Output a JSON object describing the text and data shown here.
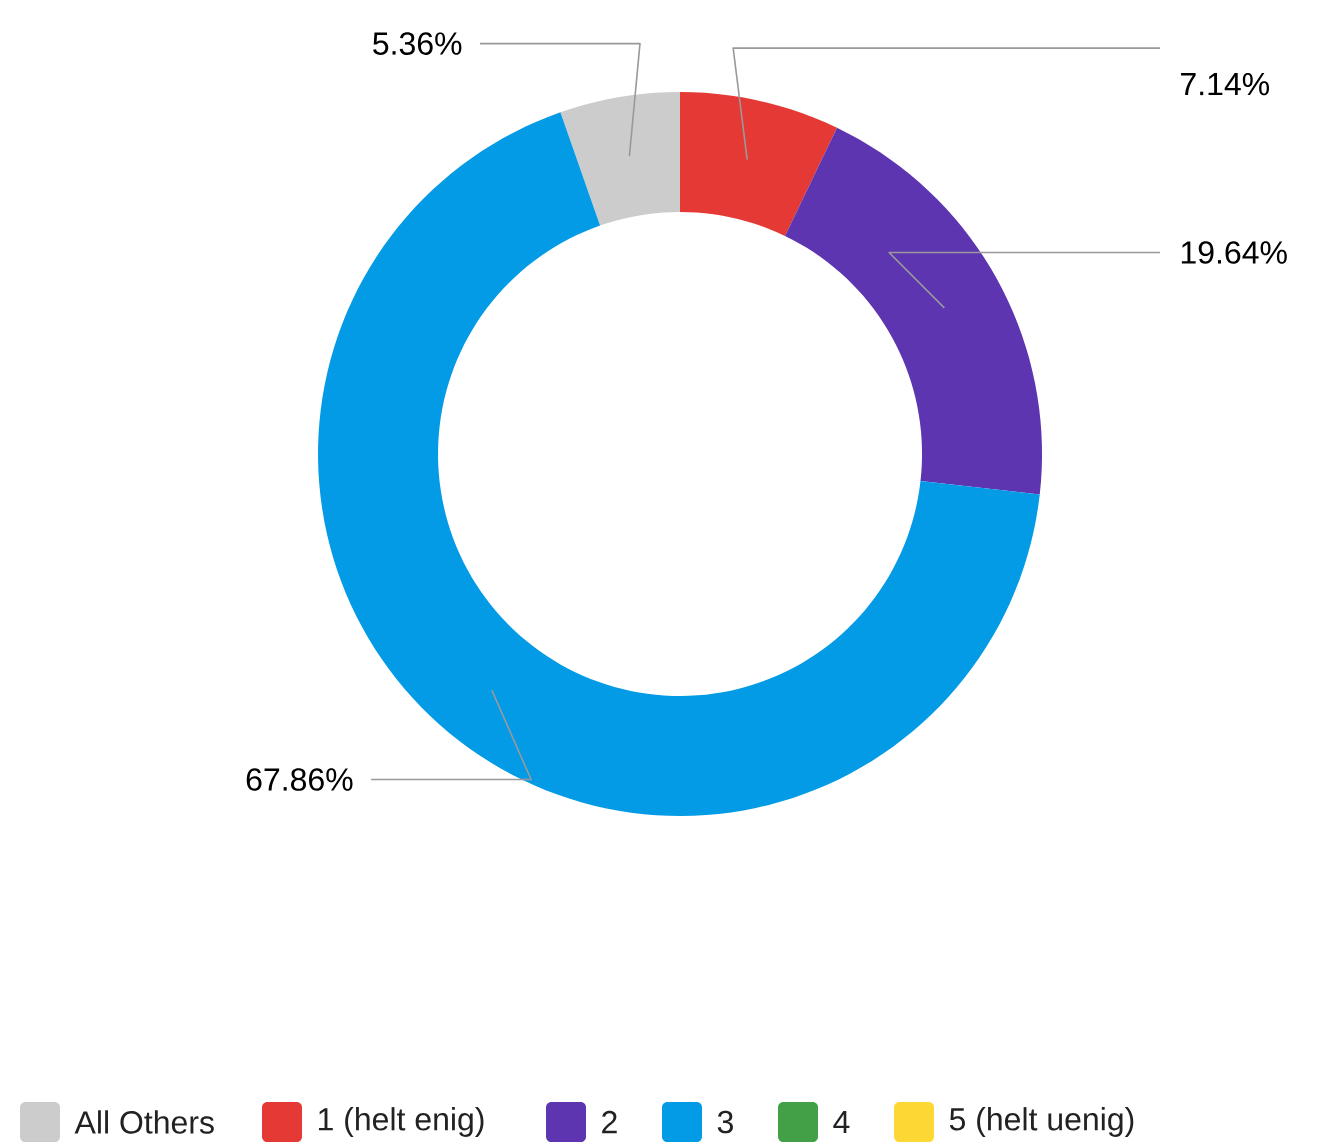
{
  "chart_data": {
    "type": "donut",
    "categories": [
      "All Others",
      "1 (helt enig)",
      "2",
      "3",
      "4",
      "5 (helt uenig)"
    ],
    "values": [
      5.36,
      7.14,
      19.64,
      67.86,
      0,
      0
    ],
    "colors": [
      "#cccccc",
      "#e53935",
      "#5e35b1",
      "#039be5",
      "#43a047",
      "#fdd835"
    ],
    "value_labels": [
      "5.36%",
      "7.14%",
      "19.64%",
      "67.86%",
      null,
      null
    ],
    "legend": "bottom"
  }
}
